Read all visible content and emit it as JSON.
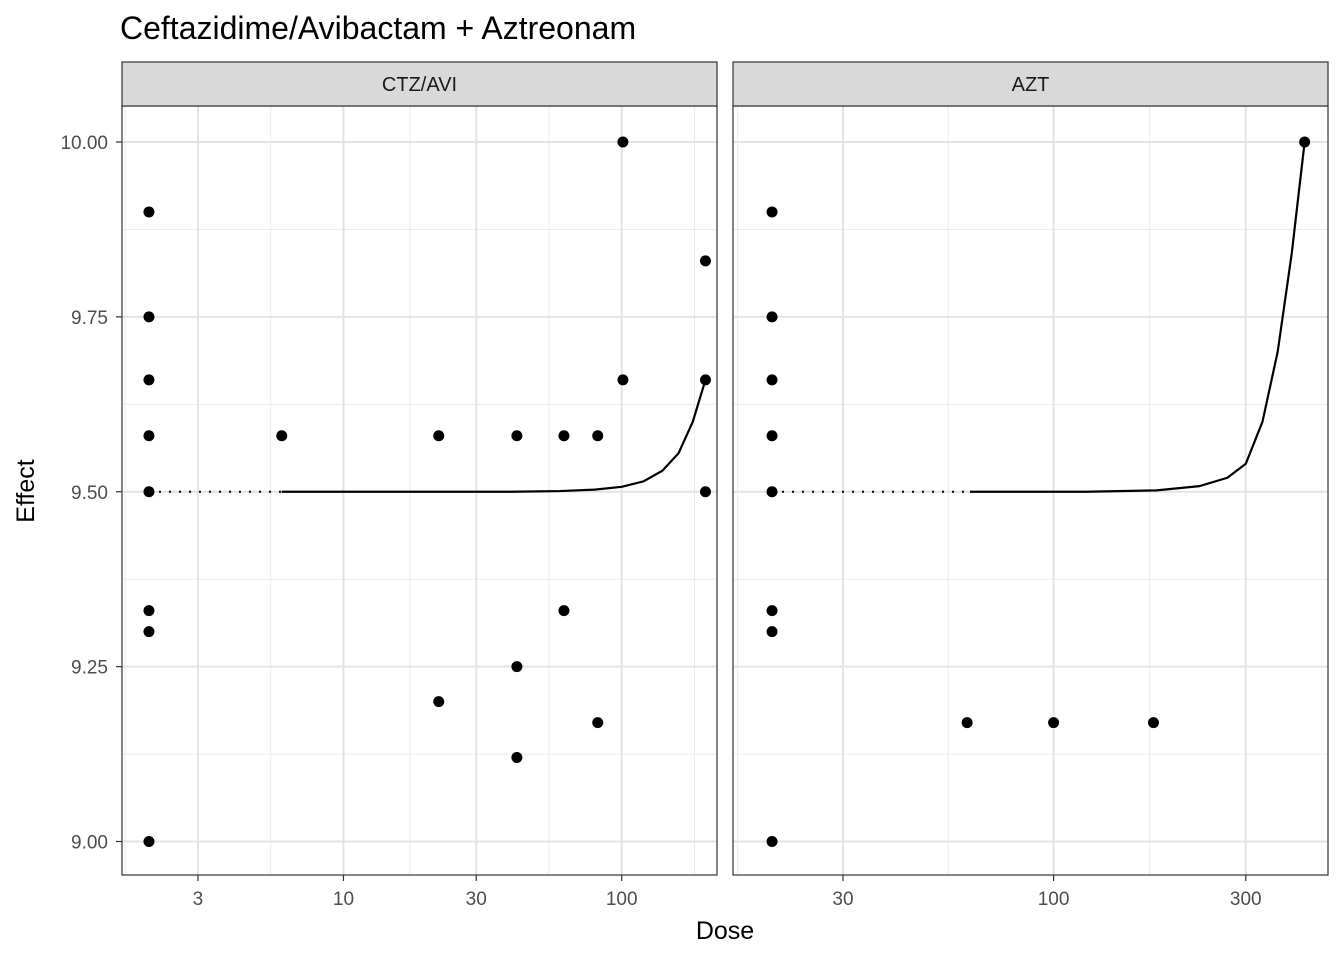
{
  "chart_data": {
    "type": "scatter",
    "title": "Ceftazidime/Avibactam + Aztreonam",
    "xlabel": "Dose",
    "ylabel": "Effect",
    "ylim": [
      8.95,
      10.05
    ],
    "y_ticks": [
      9.0,
      9.25,
      9.5,
      9.75,
      10.0
    ],
    "y_tick_labels": [
      "9.00",
      "9.25",
      "9.50",
      "9.75",
      "10.00"
    ],
    "x_scale": "log",
    "grid": true,
    "facets": [
      {
        "strip_label": "CTZ/AVI",
        "xlim": [
          1.6,
          220
        ],
        "x_ticks": [
          3,
          10,
          30,
          100
        ],
        "x_tick_labels": [
          "3",
          "10",
          "30",
          "100"
        ],
        "points": [
          {
            "x": 2,
            "y": 9.9
          },
          {
            "x": 2,
            "y": 9.75
          },
          {
            "x": 2,
            "y": 9.66
          },
          {
            "x": 2,
            "y": 9.58
          },
          {
            "x": 2,
            "y": 9.5
          },
          {
            "x": 2,
            "y": 9.33
          },
          {
            "x": 2,
            "y": 9.3
          },
          {
            "x": 2,
            "y": 9.0
          },
          {
            "x": 6,
            "y": 9.58
          },
          {
            "x": 22,
            "y": 9.58
          },
          {
            "x": 22,
            "y": 9.2
          },
          {
            "x": 42,
            "y": 9.58
          },
          {
            "x": 42,
            "y": 9.25
          },
          {
            "x": 42,
            "y": 9.12
          },
          {
            "x": 62,
            "y": 9.58
          },
          {
            "x": 62,
            "y": 9.33
          },
          {
            "x": 82,
            "y": 9.58
          },
          {
            "x": 82,
            "y": 9.17
          },
          {
            "x": 101,
            "y": 10.0
          },
          {
            "x": 101,
            "y": 9.66
          },
          {
            "x": 200,
            "y": 9.83
          },
          {
            "x": 200,
            "y": 9.66
          },
          {
            "x": 200,
            "y": 9.5
          }
        ],
        "fit_curve": [
          {
            "x": 6,
            "y": 9.5
          },
          {
            "x": 20,
            "y": 9.5
          },
          {
            "x": 40,
            "y": 9.5
          },
          {
            "x": 60,
            "y": 9.501
          },
          {
            "x": 80,
            "y": 9.503
          },
          {
            "x": 100,
            "y": 9.507
          },
          {
            "x": 120,
            "y": 9.515
          },
          {
            "x": 140,
            "y": 9.53
          },
          {
            "x": 160,
            "y": 9.555
          },
          {
            "x": 180,
            "y": 9.6
          },
          {
            "x": 200,
            "y": 9.66
          }
        ],
        "baseline_dotted": {
          "x_from": 2,
          "x_to": 6,
          "y": 9.5
        }
      },
      {
        "strip_label": "AZT",
        "xlim": [
          16,
          480
        ],
        "x_ticks": [
          30,
          100,
          300
        ],
        "x_tick_labels": [
          "30",
          "100",
          "300"
        ],
        "points": [
          {
            "x": 20,
            "y": 9.9
          },
          {
            "x": 20,
            "y": 9.75
          },
          {
            "x": 20,
            "y": 9.66
          },
          {
            "x": 20,
            "y": 9.58
          },
          {
            "x": 20,
            "y": 9.5
          },
          {
            "x": 20,
            "y": 9.33
          },
          {
            "x": 20,
            "y": 9.3
          },
          {
            "x": 20,
            "y": 9.0
          },
          {
            "x": 61,
            "y": 9.17
          },
          {
            "x": 100,
            "y": 9.17
          },
          {
            "x": 177,
            "y": 9.17
          },
          {
            "x": 420,
            "y": 10.0
          }
        ],
        "fit_curve": [
          {
            "x": 62,
            "y": 9.5
          },
          {
            "x": 120,
            "y": 9.5
          },
          {
            "x": 180,
            "y": 9.502
          },
          {
            "x": 230,
            "y": 9.508
          },
          {
            "x": 270,
            "y": 9.52
          },
          {
            "x": 300,
            "y": 9.54
          },
          {
            "x": 330,
            "y": 9.6
          },
          {
            "x": 360,
            "y": 9.7
          },
          {
            "x": 390,
            "y": 9.84
          },
          {
            "x": 420,
            "y": 10.0
          }
        ],
        "baseline_dotted": {
          "x_from": 20,
          "x_to": 62,
          "y": 9.5
        }
      }
    ]
  }
}
